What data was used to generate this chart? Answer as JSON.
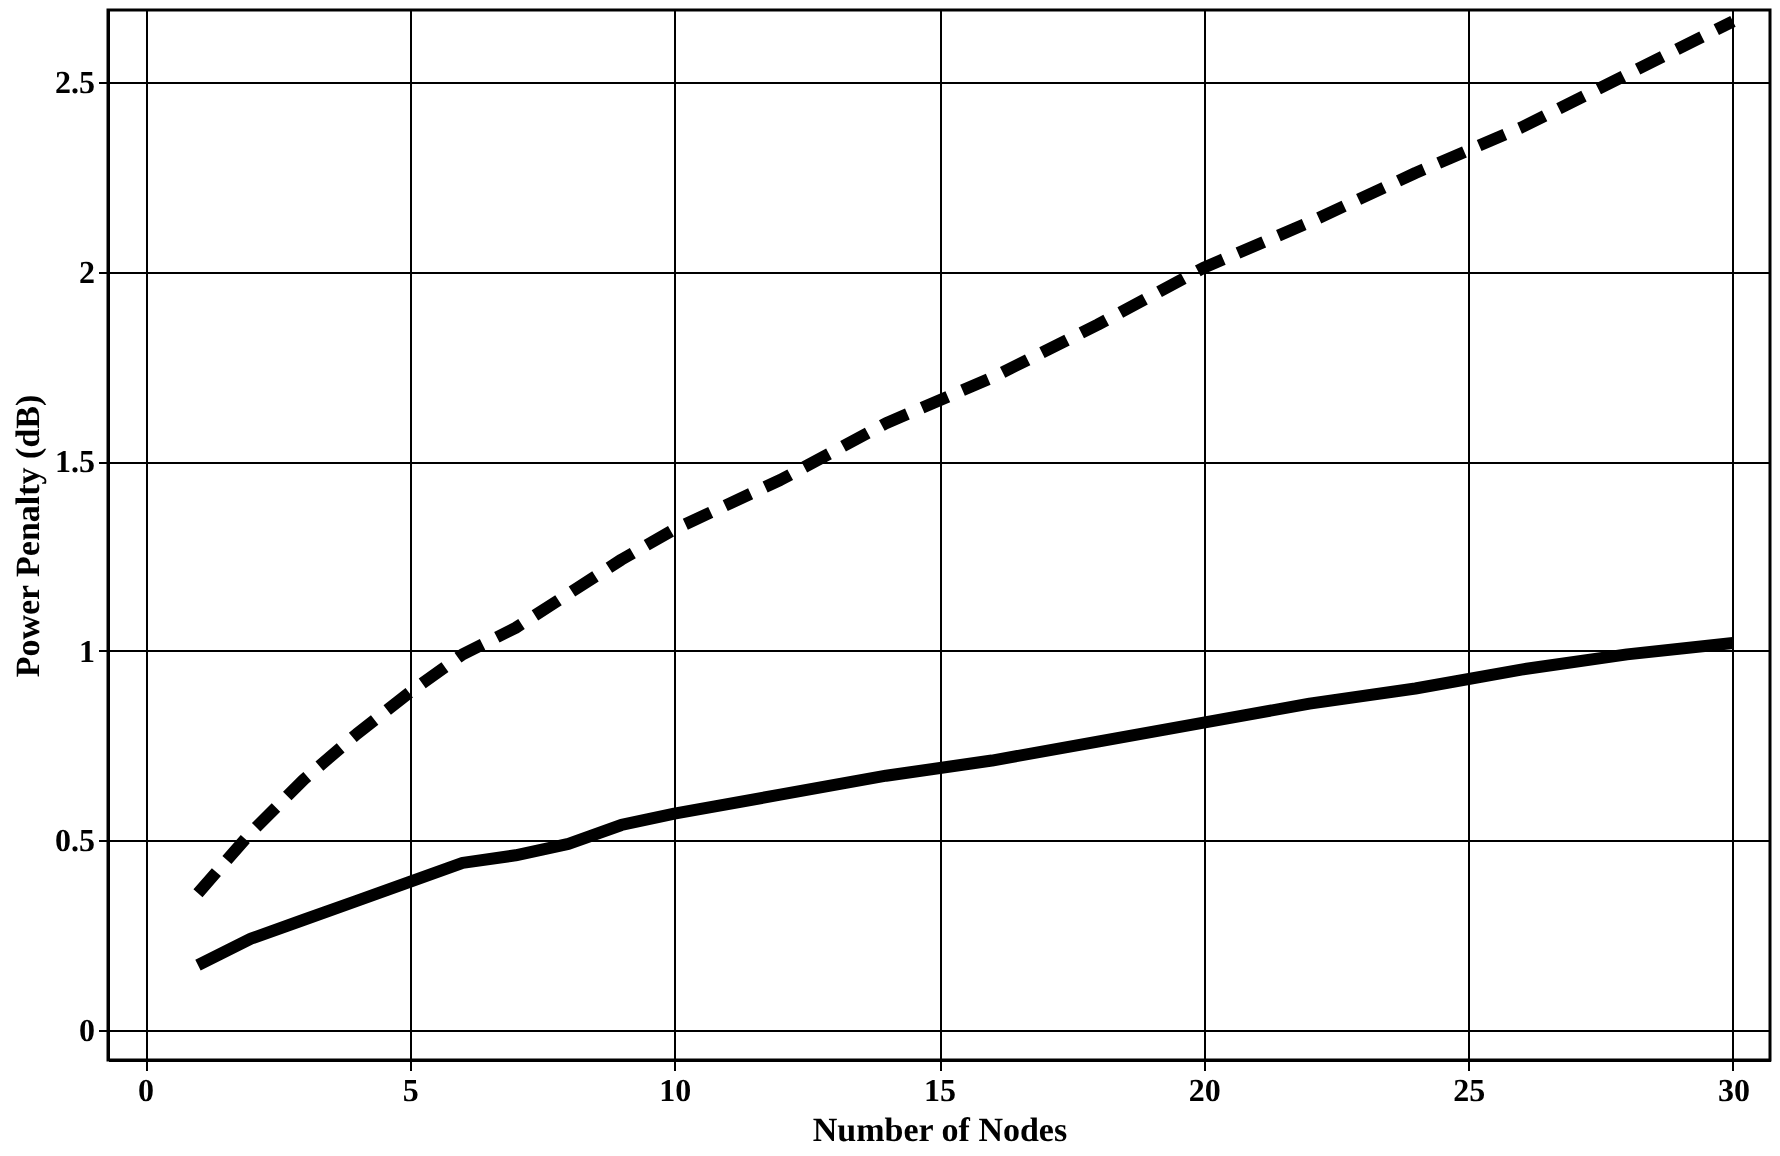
{
  "chart_data": {
    "type": "line",
    "xlabel": "Number of Nodes",
    "ylabel": "Power Penalty (dB)",
    "x": [
      1,
      2,
      3,
      4,
      5,
      6,
      7,
      8,
      9,
      10,
      12,
      14,
      16,
      18,
      20,
      22,
      24,
      26,
      28,
      30
    ],
    "series": [
      {
        "color": "#000000",
        "line_style": "dashed",
        "values": [
          0.36,
          0.52,
          0.66,
          0.78,
          0.89,
          0.99,
          1.06,
          1.15,
          1.24,
          1.32,
          1.45,
          1.6,
          1.72,
          1.86,
          2.01,
          2.13,
          2.26,
          2.38,
          2.52,
          2.66
        ]
      },
      {
        "color": "#000000",
        "line_style": "solid",
        "values": [
          0.17,
          0.24,
          0.29,
          0.34,
          0.39,
          0.44,
          0.46,
          0.49,
          0.54,
          0.57,
          0.62,
          0.67,
          0.71,
          0.76,
          0.81,
          0.86,
          0.9,
          0.95,
          0.99,
          1.02
        ]
      }
    ],
    "xlim": [
      -0.7,
      30.7
    ],
    "xticks": [
      0,
      5,
      10,
      15,
      20,
      25,
      30
    ],
    "ylim": [
      -0.08,
      2.69
    ],
    "yticks": [
      0,
      0.5,
      1,
      1.5,
      2,
      2.5
    ],
    "grid": true,
    "marker": "none"
  }
}
